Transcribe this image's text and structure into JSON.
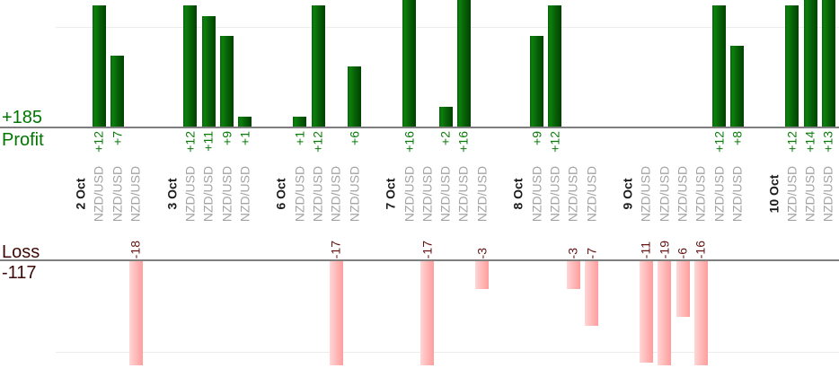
{
  "chart_data": {
    "type": "bar",
    "description": "Daily trade profit/loss bar chart, profits plotted upward above a Profit axis, losses plotted downward below a Loss axis, one bar per trade",
    "instrument": "NZD/USD",
    "profit_section": {
      "axis_label": "Profit",
      "total_label": "+185",
      "total_value": 185
    },
    "loss_section": {
      "axis_label": "Loss",
      "total_label": "-117",
      "total_value": -117
    },
    "groups": [
      {
        "date": "2 Oct",
        "trades": [
          12,
          7,
          -18
        ]
      },
      {
        "date": "3 Oct",
        "trades": [
          12,
          11,
          9,
          1
        ]
      },
      {
        "date": "6 Oct",
        "trades": [
          1,
          12,
          -17,
          6
        ]
      },
      {
        "date": "7 Oct",
        "trades": [
          16,
          -17,
          2,
          16,
          -3
        ]
      },
      {
        "date": "8 Oct",
        "trades": [
          9,
          12,
          -3,
          -7
        ]
      },
      {
        "date": "9 Oct",
        "trades": [
          -11,
          -19,
          -6,
          -16,
          12,
          8
        ]
      },
      {
        "date": "10 Oct",
        "trades": [
          12,
          14,
          13
        ]
      }
    ],
    "layout_hints": {
      "value_labels_rotated": true,
      "category_labels_rotated": true,
      "gridline_step": 10,
      "tall_bars_clipped": true,
      "legend": "none"
    },
    "colors": {
      "profit_bar": "#0c800c",
      "profit_bar_dark": "#004200",
      "loss_bar_light": "#ffd6d6",
      "loss_bar": "#ff9d9d",
      "profit_value_text": "#0b7a0b",
      "loss_value_text": "#641414",
      "profit_title_text": "#007600",
      "loss_title_text": "#3f0808",
      "instrument_text": "#a3a3a3",
      "date_text": "#1c1c1c",
      "axis_line": "#7f7f7f",
      "gridline": "#ececec"
    }
  }
}
